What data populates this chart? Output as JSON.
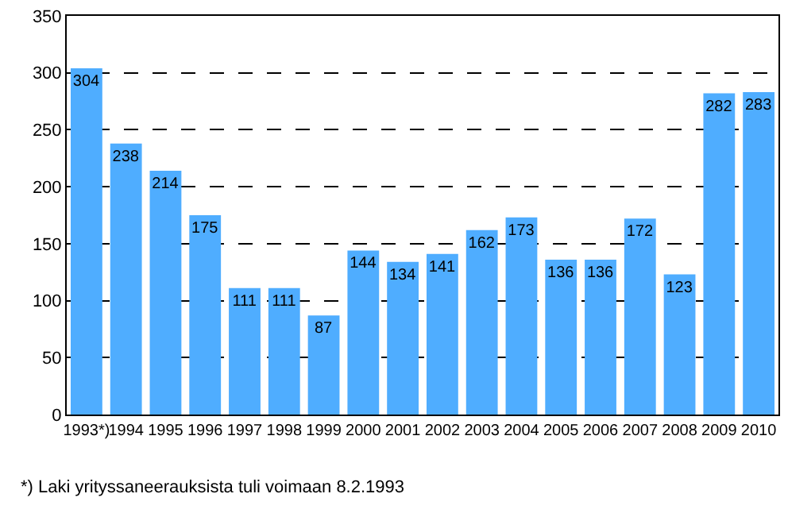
{
  "chart_data": {
    "type": "bar",
    "categories": [
      "1993*)",
      "1994",
      "1995",
      "1996",
      "1997",
      "1998",
      "1999",
      "2000",
      "2001",
      "2002",
      "2003",
      "2004",
      "2005",
      "2006",
      "2007",
      "2008",
      "2009",
      "2010"
    ],
    "values": [
      304,
      238,
      214,
      175,
      111,
      111,
      87,
      144,
      134,
      141,
      162,
      173,
      136,
      136,
      172,
      123,
      282,
      283
    ],
    "color": "#4fadff",
    "ylim": [
      0,
      350
    ],
    "yticks": [
      0,
      50,
      100,
      150,
      200,
      250,
      300,
      350
    ],
    "grid": "y",
    "data_labels": true,
    "legend": false,
    "annotations": [
      "*) Laki yrityssaneerauksista tuli voimaan 8.2.1993"
    ]
  }
}
